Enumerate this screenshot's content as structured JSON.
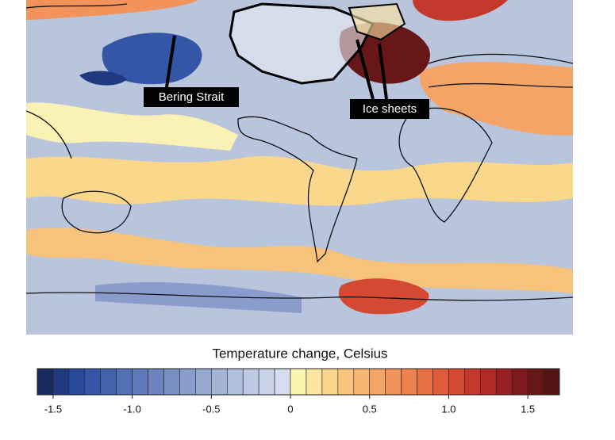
{
  "map": {
    "labels": [
      "Bering Strait",
      "Ice sheets"
    ]
  },
  "colorbar": {
    "title": "Temperature change, Celsius",
    "lim": [
      -1.6,
      1.7
    ],
    "ticks": [
      {
        "value": -1.5,
        "label": "-1.5"
      },
      {
        "value": -1,
        "label": "-1.0"
      },
      {
        "value": -0.5,
        "label": "-0.5"
      },
      0,
      0.5,
      {
        "value": 1,
        "label": "1.0"
      },
      1.5
    ],
    "colors": [
      "#1b2a5e",
      "#1f3a80",
      "#28489a",
      "#3556a6",
      "#4262ad",
      "#5270b4",
      "#6079b8",
      "#6c83bd",
      "#7a90c4",
      "#889dcb",
      "#96a9d1",
      "#a3b4d6",
      "#b0bfdc",
      "#bdc9e2",
      "#c8d3e7",
      "#d4dced",
      "#fbf5b0",
      "#fde6a0",
      "#fbd58c",
      "#f9c57e",
      "#f7b572",
      "#f4a566",
      "#f1935a",
      "#ed814f",
      "#e86e44",
      "#e05b3a",
      "#d54832",
      "#c5382b",
      "#b02a26",
      "#972022",
      "#7e1a1e",
      "#681719",
      "#551414"
    ]
  }
}
